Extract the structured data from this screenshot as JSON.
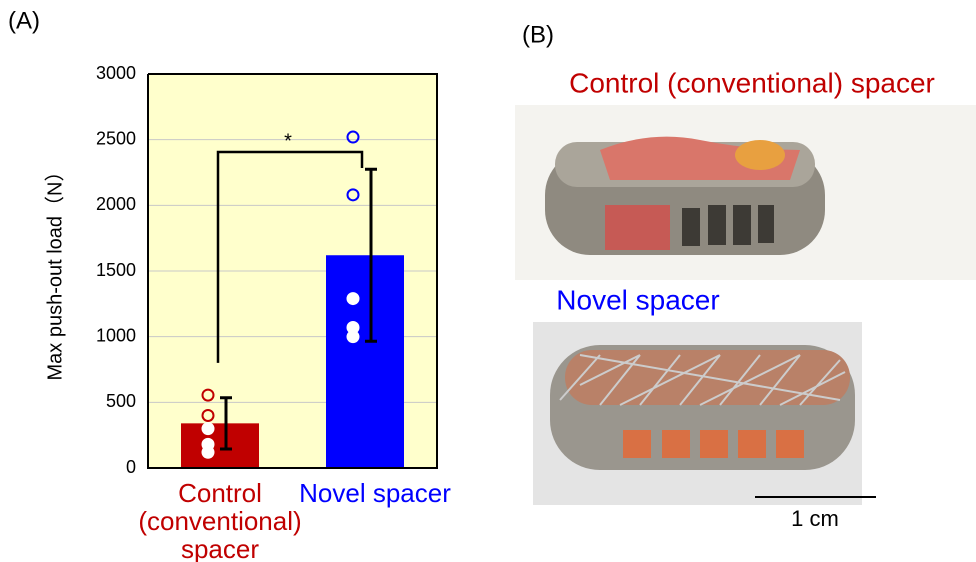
{
  "chart_data": {
    "type": "bar",
    "panel_label": "(A)",
    "ylabel": "Max push-out load（N）",
    "categories": [
      "Control (conventional) spacer",
      "Novel spacer"
    ],
    "values": [
      340,
      1620
    ],
    "errors": [
      195,
      655
    ],
    "colors": [
      "#c00000",
      "#0000ff"
    ],
    "points": [
      [
        555,
        400,
        300,
        180,
        120
      ],
      [
        2520,
        2080,
        1290,
        1070,
        1000
      ]
    ],
    "ylim": [
      0,
      3000
    ],
    "yticks": [
      0,
      500,
      1000,
      1500,
      2000,
      2500,
      3000
    ],
    "grid": true,
    "background": "#ffffcc",
    "annotation": "*"
  },
  "photo_panel": {
    "panel_label": "(B)",
    "photos": [
      {
        "label": "Control (conventional) spacer",
        "color": "#c00000"
      },
      {
        "label": "Novel spacer",
        "color": "#0000ff"
      }
    ],
    "scale_label": "1 cm"
  }
}
